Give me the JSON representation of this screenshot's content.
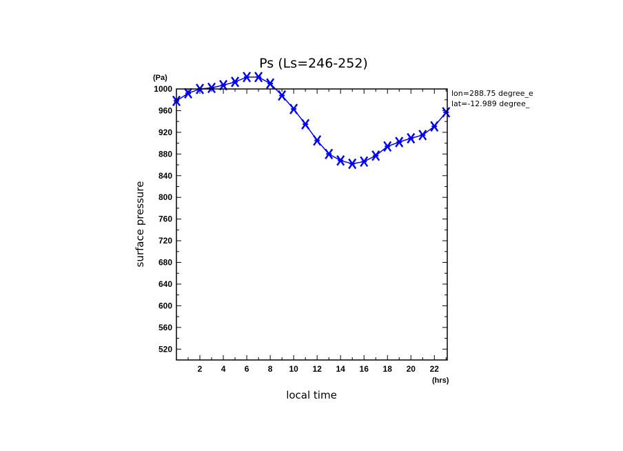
{
  "chart_data": {
    "type": "line",
    "title": "Ps (Ls=246-252)",
    "xlabel": "local time",
    "ylabel": "surface pressure",
    "x_unit": "(hrs)",
    "y_unit": "(Pa)",
    "xlim": [
      0,
      23.1
    ],
    "ylim": [
      500,
      1000
    ],
    "x_ticks": [
      2,
      4,
      6,
      8,
      10,
      12,
      14,
      16,
      18,
      20,
      22
    ],
    "y_ticks": [
      520,
      560,
      600,
      640,
      680,
      720,
      760,
      800,
      840,
      880,
      920,
      960,
      1000
    ],
    "grid": false,
    "annotations": [
      "lon=288.75 degree_e",
      "lat=-12.989 degree_"
    ],
    "series": [
      {
        "color": "#0000ff",
        "marker": "x",
        "x": [
          0,
          1,
          2,
          3,
          4,
          5,
          6,
          7,
          8,
          9,
          10,
          11,
          12,
          13,
          14,
          15,
          16,
          17,
          18,
          19,
          20,
          21,
          22,
          23
        ],
        "y": [
          978,
          992,
          1000,
          1002,
          1007,
          1013,
          1022,
          1022,
          1010,
          988,
          963,
          935,
          905,
          880,
          868,
          862,
          866,
          877,
          894,
          902,
          909,
          915,
          931,
          957
        ]
      }
    ]
  }
}
